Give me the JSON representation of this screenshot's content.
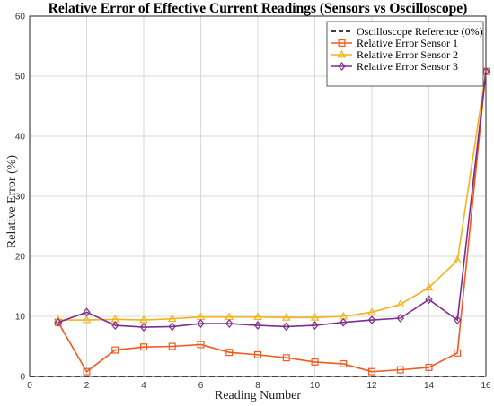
{
  "chart_data": {
    "type": "line",
    "title": "Relative Error of Effective Current Readings (Sensors vs Oscilloscope)",
    "xlabel": "Reading Number",
    "ylabel": "Relative Error (%)",
    "xlim": [
      0,
      16
    ],
    "ylim": [
      0,
      60
    ],
    "xticks": [
      0,
      2,
      4,
      6,
      8,
      10,
      12,
      14,
      16
    ],
    "yticks": [
      0,
      10,
      20,
      30,
      40,
      50,
      60
    ],
    "grid": true,
    "legend_position": "top-right",
    "x": [
      1,
      2,
      3,
      4,
      5,
      6,
      7,
      8,
      9,
      10,
      11,
      12,
      13,
      14,
      15,
      16
    ],
    "reference": {
      "name": "Oscilloscope Reference (0%)",
      "value": 0,
      "color": "#000000",
      "style": "dashed"
    },
    "series": [
      {
        "name": "Relative Error Sensor 1",
        "color": "#f05a1e",
        "marker": "square",
        "values": [
          9.0,
          0.8,
          4.4,
          4.9,
          5.0,
          5.3,
          4.0,
          3.6,
          3.1,
          2.4,
          2.1,
          0.8,
          1.1,
          1.5,
          3.9,
          50.8
        ]
      },
      {
        "name": "Relative Error Sensor 2",
        "color": "#f2b31b",
        "marker": "triangle",
        "values": [
          9.4,
          9.4,
          9.5,
          9.4,
          9.6,
          9.9,
          9.9,
          9.9,
          9.8,
          9.8,
          10.0,
          10.7,
          12.0,
          14.8,
          19.3,
          50.8
        ]
      },
      {
        "name": "Relative Error Sensor 3",
        "color": "#7e2d8e",
        "marker": "diamond",
        "values": [
          9.0,
          10.7,
          8.5,
          8.2,
          8.3,
          8.8,
          8.8,
          8.5,
          8.3,
          8.5,
          9.0,
          9.4,
          9.7,
          12.8,
          9.4,
          50.8
        ]
      }
    ]
  }
}
